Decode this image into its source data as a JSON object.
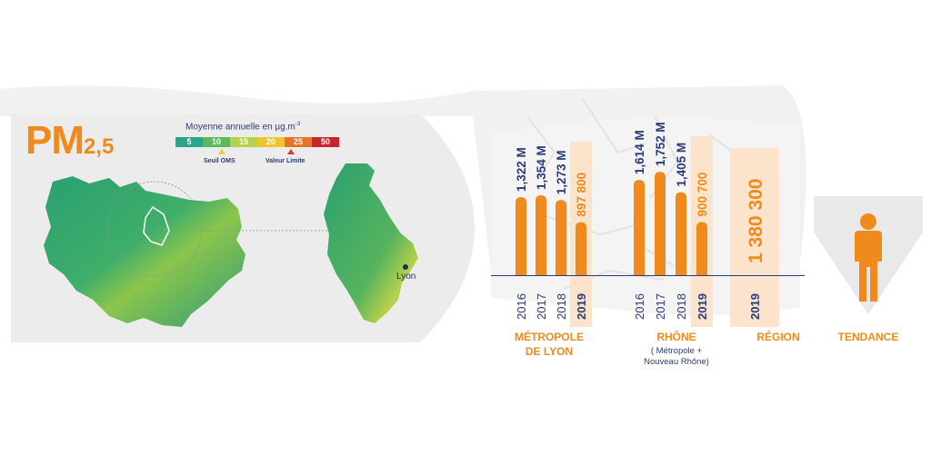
{
  "indicator": {
    "title_main": "PM",
    "title_sub": "2,5"
  },
  "legend": {
    "title": "Moyenne annuelle en µg.m",
    "title_exp": "-3",
    "steps": [
      {
        "label": "5",
        "color": "#2aa48a"
      },
      {
        "label": "10",
        "color": "#5cba5a"
      },
      {
        "label": "15",
        "color": "#b6d24a"
      },
      {
        "label": "20",
        "color": "#f0c52a"
      },
      {
        "label": "25",
        "color": "#e8742a"
      },
      {
        "label": "50",
        "color": "#c8242a"
      }
    ],
    "note_oms": "Seuil OMS",
    "note_limit": "Valeur Limite"
  },
  "map": {
    "city": "Lyon"
  },
  "chart_data": {
    "type": "bar",
    "groups": [
      {
        "name": "MÉTROPOLE DE LYON",
        "title_lines": [
          "MÉTROPOLE",
          "DE LYON"
        ],
        "subtitle_lines": [],
        "categories": [
          "2016",
          "2017",
          "2018",
          "2019"
        ],
        "values": [
          1322000,
          1354000,
          1273000,
          897800
        ],
        "value_labels": [
          "1,322 M",
          "1,354 M",
          "1,273 M",
          "897 800"
        ],
        "highlight": "2019"
      },
      {
        "name": "RHÔNE",
        "title_lines": [
          "RHÔNE"
        ],
        "subtitle_lines": [
          "( Métropole +",
          "Nouveau Rhône)"
        ],
        "categories": [
          "2016",
          "2017",
          "2018",
          "2019"
        ],
        "values": [
          1614000,
          1752000,
          1405000,
          900700
        ],
        "value_labels": [
          "1,614 M",
          "1,752 M",
          "1,405 M",
          "900 700"
        ],
        "highlight": "2019"
      },
      {
        "name": "RÉGION",
        "title_lines": [
          "RÉGION"
        ],
        "subtitle_lines": [],
        "categories": [
          "2019"
        ],
        "values": [
          1380300
        ],
        "value_labels": [
          "1 380 300"
        ],
        "highlight": "2019"
      }
    ],
    "trend_label": "TENDANCE",
    "colors": {
      "bar": "#f08a1c",
      "highlight_bg": "#fbe3cc",
      "text": "#2b3a7a"
    }
  }
}
